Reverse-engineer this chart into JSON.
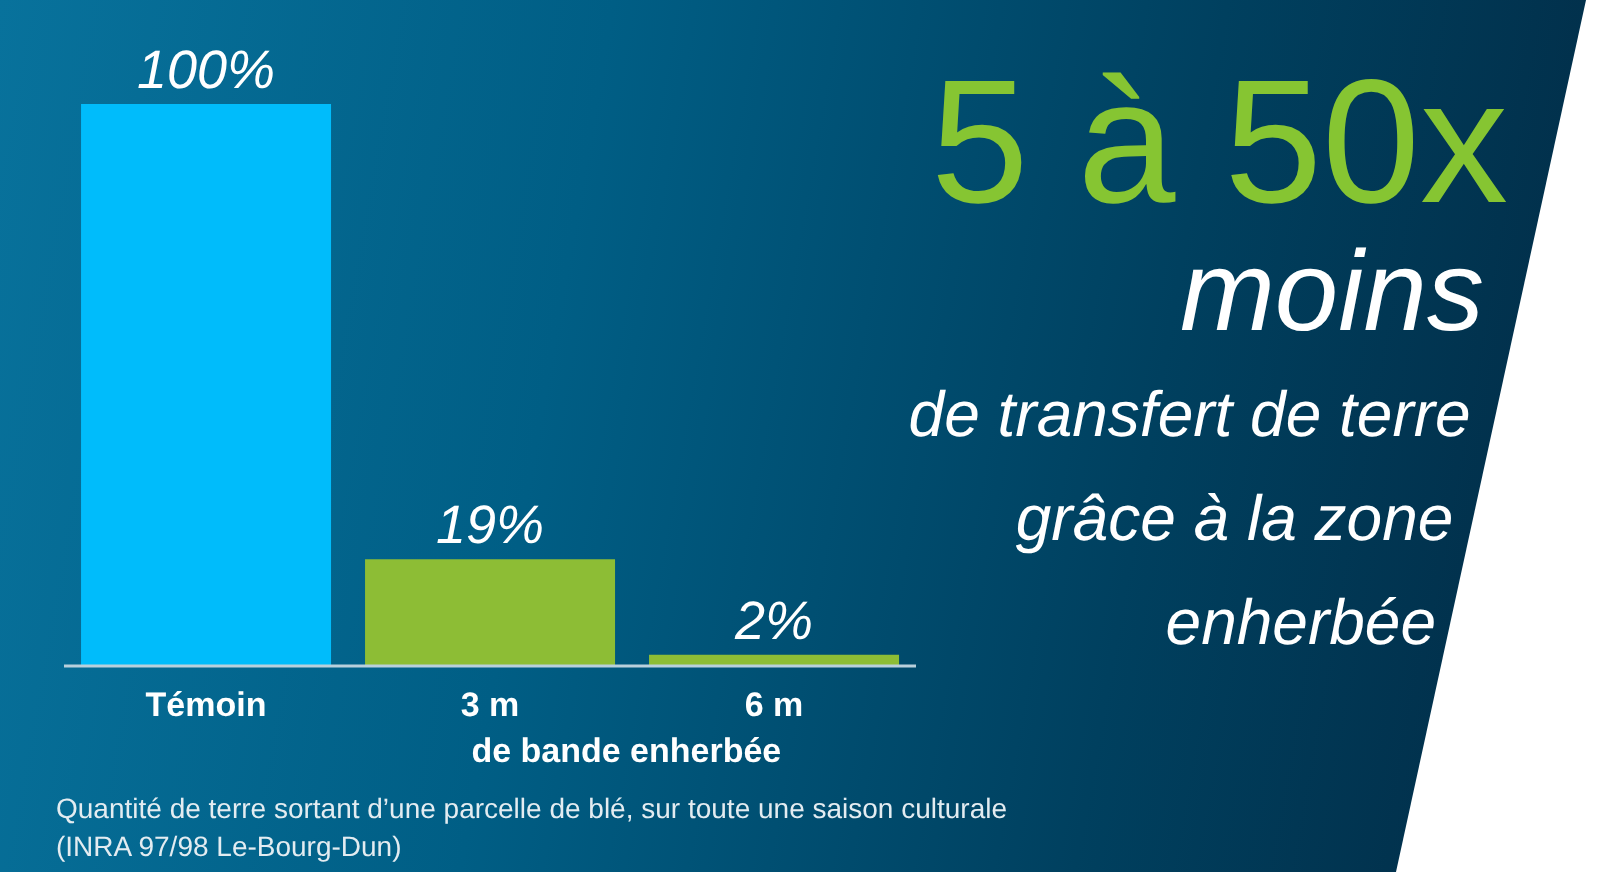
{
  "chart_data": {
    "type": "bar",
    "title": "5 à 50x",
    "subtitle": "moins",
    "categories": [
      "Témoin",
      "3 m",
      "6 m"
    ],
    "values": [
      100,
      19,
      2
    ],
    "colors": [
      "#00bcfb",
      "#8dbd35",
      "#8dbd35"
    ],
    "value_labels": [
      "100%",
      "19%",
      "2%"
    ],
    "xlabel": "de bande enherbée",
    "annotations": [
      "de transfert de terre grâce à la zone enherbée",
      "Quantité de terre sortant d’une parcelle de blé, sur toute une saison culturale (INRA 97/98 Le-Bourg-Dun)"
    ]
  }
}
